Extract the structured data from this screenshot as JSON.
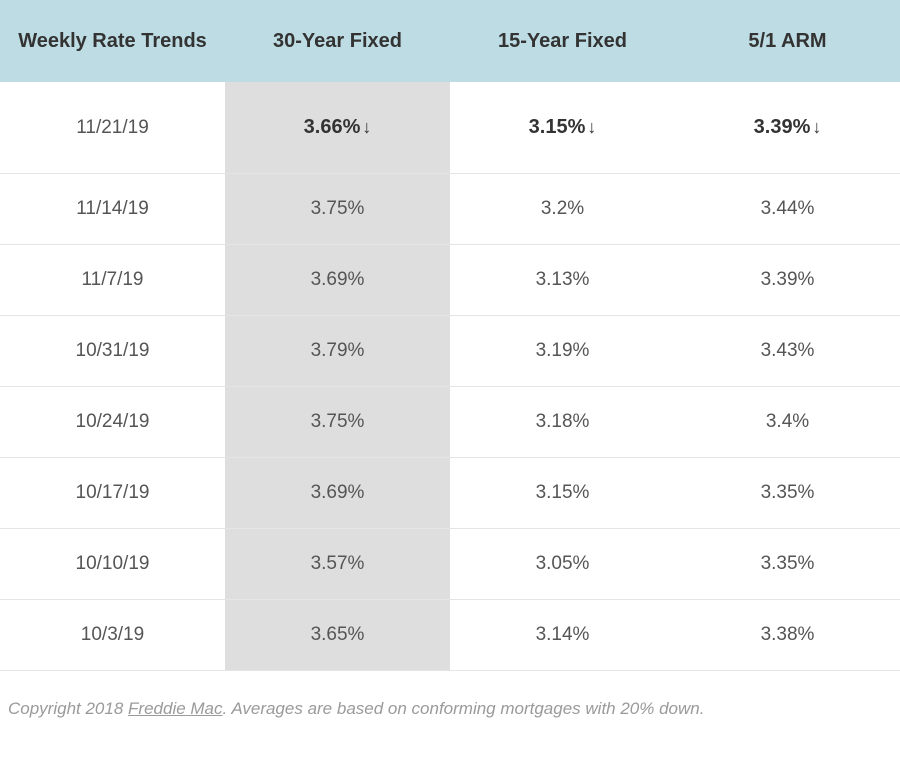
{
  "table": {
    "columns": [
      "Weekly Rate Trends",
      "30-Year Fixed",
      "15-Year Fixed",
      "5/1 ARM"
    ],
    "highlight_column_index": 1,
    "header_bg": "#bedce3",
    "highlight_bg": "#dedede",
    "border_color": "#e5e5e5",
    "text_color": "#555555",
    "header_text_color": "#333333",
    "first_row_bold": true,
    "arrow_glyph": "↓",
    "rows": [
      {
        "date": "11/21/19",
        "c1": "3.66%",
        "c1_arrow": true,
        "c2": "3.15%",
        "c2_arrow": true,
        "c3": "3.39%",
        "c3_arrow": true
      },
      {
        "date": "11/14/19",
        "c1": "3.75%",
        "c2": "3.2%",
        "c3": "3.44%"
      },
      {
        "date": "11/7/19",
        "c1": "3.69%",
        "c2": "3.13%",
        "c3": "3.39%"
      },
      {
        "date": "10/31/19",
        "c1": "3.79%",
        "c2": "3.19%",
        "c3": "3.43%"
      },
      {
        "date": "10/24/19",
        "c1": "3.75%",
        "c2": "3.18%",
        "c3": "3.4%"
      },
      {
        "date": "10/17/19",
        "c1": "3.69%",
        "c2": "3.15%",
        "c3": "3.35%"
      },
      {
        "date": "10/10/19",
        "c1": "3.57%",
        "c2": "3.05%",
        "c3": "3.35%"
      },
      {
        "date": "10/3/19",
        "c1": "3.65%",
        "c2": "3.14%",
        "c3": "3.38%"
      }
    ]
  },
  "footnote": {
    "prefix": "Copyright 2018 ",
    "link_text": "Freddie Mac",
    "suffix": ". Averages are based on conforming mortgages with 20% down."
  }
}
